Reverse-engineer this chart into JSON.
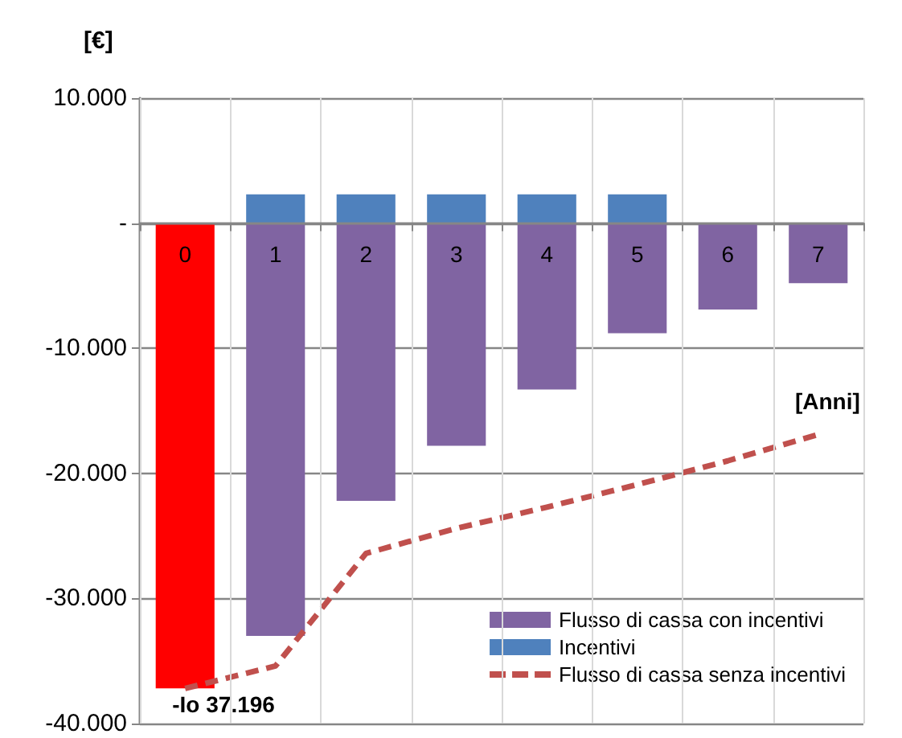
{
  "chart_data": {
    "type": "bar",
    "ylabel": "[€]",
    "xlabel": "[Anni]",
    "categories": [
      "0",
      "1",
      "2",
      "3",
      "4",
      "5",
      "6",
      "7"
    ],
    "stacked": true,
    "series": [
      {
        "name": "Flusso di cassa con incentivi",
        "color": "#8064a2",
        "colors": [
          "#ff0000",
          "#8064a2",
          "#8064a2",
          "#8064a2",
          "#8064a2",
          "#8064a2",
          "#8064a2",
          "#8064a2"
        ],
        "values": [
          -37196,
          -33000,
          -22200,
          -17800,
          -13300,
          -8800,
          -6900,
          -4800
        ]
      },
      {
        "name": "Incentivi",
        "color": "#4f81bd",
        "values": [
          null,
          2300,
          2300,
          2300,
          2300,
          2300,
          null,
          null
        ]
      },
      {
        "name": "Flusso di cassa senza incentivi",
        "type": "line",
        "color": "#c0504d",
        "line_style": "dashed",
        "marker": "none",
        "values": [
          -37196,
          -35400,
          -26400,
          -24400,
          -22700,
          -20900,
          -19000,
          -16900
        ]
      }
    ],
    "ylim": [
      -40000,
      10000
    ],
    "yticks": [
      {
        "value": -40000,
        "label": "-40.000"
      },
      {
        "value": -30000,
        "label": "-30.000"
      },
      {
        "value": -20000,
        "label": "-20.000"
      },
      {
        "value": -10000,
        "label": "-10.000"
      },
      {
        "value": 0,
        "label": "-"
      },
      {
        "value": 10000,
        "label": "10.000"
      }
    ],
    "grid": true,
    "legend": "bottom right",
    "annotations": [
      {
        "text": "-Io 37.196",
        "x": "0",
        "y": -37196
      }
    ]
  }
}
